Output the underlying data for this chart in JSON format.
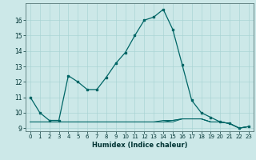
{
  "xlabel": "Humidex (Indice chaleur)",
  "x_values": [
    0,
    1,
    2,
    3,
    4,
    5,
    6,
    7,
    8,
    9,
    10,
    11,
    12,
    13,
    14,
    15,
    16,
    17,
    18,
    19,
    20,
    21,
    22,
    23
  ],
  "y_main": [
    11,
    10,
    9.5,
    9.5,
    12.4,
    12,
    11.5,
    11.5,
    12.3,
    13.2,
    13.9,
    15,
    16,
    16.2,
    16.7,
    15.4,
    13.1,
    10.8,
    10,
    9.7,
    9.4,
    9.3,
    9.0,
    9.1
  ],
  "y_low1": [
    9.4,
    9.4,
    9.4,
    9.4,
    9.4,
    9.4,
    9.4,
    9.4,
    9.4,
    9.4,
    9.4,
    9.4,
    9.4,
    9.4,
    9.4,
    9.4,
    9.6,
    9.6,
    9.6,
    9.4,
    9.4,
    9.3,
    9.0,
    9.1
  ],
  "y_low2": [
    9.4,
    9.4,
    9.4,
    9.4,
    9.4,
    9.4,
    9.4,
    9.4,
    9.4,
    9.4,
    9.4,
    9.4,
    9.4,
    9.4,
    9.5,
    9.5,
    9.6,
    9.6,
    9.6,
    9.4,
    9.4,
    9.3,
    9.0,
    9.1
  ],
  "y_low3": [
    9.4,
    9.4,
    9.4,
    9.4,
    9.4,
    9.4,
    9.4,
    9.4,
    9.4,
    9.4,
    9.4,
    9.4,
    9.4,
    9.4,
    9.4,
    9.5,
    9.6,
    9.6,
    9.6,
    9.4,
    9.4,
    9.3,
    9.0,
    9.1
  ],
  "line_color": "#006666",
  "bg_color": "#cce8e8",
  "grid_color": "#aad4d4",
  "ylim": [
    8.8,
    17.1
  ],
  "yticks": [
    9,
    10,
    11,
    12,
    13,
    14,
    15,
    16
  ],
  "xticks": [
    0,
    1,
    2,
    3,
    4,
    5,
    6,
    7,
    8,
    9,
    10,
    11,
    12,
    13,
    14,
    15,
    16,
    17,
    18,
    19,
    20,
    21,
    22,
    23
  ]
}
